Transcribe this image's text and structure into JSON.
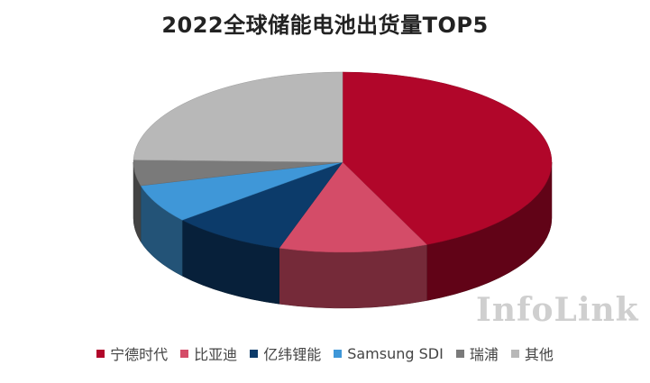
{
  "chart_data": {
    "type": "pie",
    "title": "2022全球储能电池出货量TOP5",
    "style": "3d",
    "legend_position": "bottom",
    "categories": [
      "宁德时代",
      "比亚迪",
      "亿纬锂能",
      "Samsung SDI",
      "瑞浦",
      "其他"
    ],
    "values": [
      43.4,
      11.5,
      9.0,
      6.9,
      4.6,
      24.6
    ],
    "colors": [
      "#b1062a",
      "#d44c68",
      "#0c3b6a",
      "#3f97d8",
      "#7a7a7a",
      "#b8b8b8"
    ]
  },
  "watermark": "InfoLink"
}
